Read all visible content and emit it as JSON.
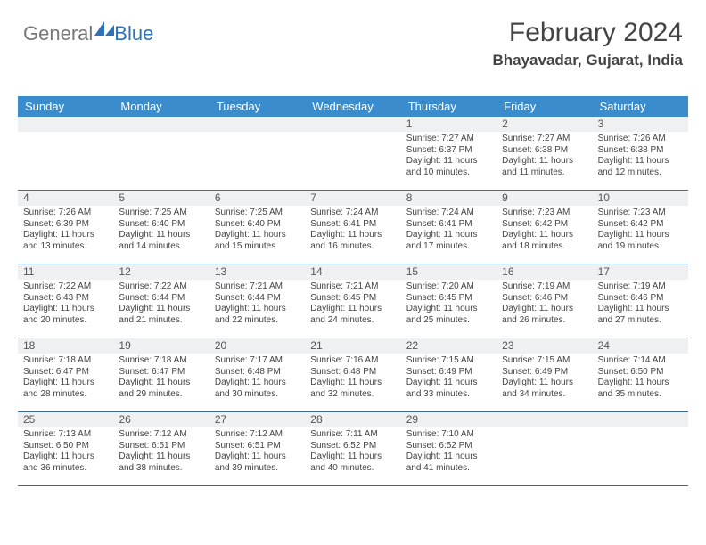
{
  "brand": {
    "part1": "General",
    "part2": "Blue"
  },
  "title": "February 2024",
  "location": "Bhayavadar, Gujarat, India",
  "colors": {
    "header_bg": "#3b8ccc",
    "header_text": "#ffffff",
    "week_border": "#3b6a9a",
    "daynum_bg": "#eef0f2",
    "text": "#444444",
    "brand_blue": "#2d72b8"
  },
  "days_of_week": [
    "Sunday",
    "Monday",
    "Tuesday",
    "Wednesday",
    "Thursday",
    "Friday",
    "Saturday"
  ],
  "cells": [
    {
      "day": "",
      "sunrise": "",
      "sunset": "",
      "daylight1": "",
      "daylight2": ""
    },
    {
      "day": "",
      "sunrise": "",
      "sunset": "",
      "daylight1": "",
      "daylight2": ""
    },
    {
      "day": "",
      "sunrise": "",
      "sunset": "",
      "daylight1": "",
      "daylight2": ""
    },
    {
      "day": "",
      "sunrise": "",
      "sunset": "",
      "daylight1": "",
      "daylight2": ""
    },
    {
      "day": "1",
      "sunrise": "Sunrise: 7:27 AM",
      "sunset": "Sunset: 6:37 PM",
      "daylight1": "Daylight: 11 hours",
      "daylight2": "and 10 minutes."
    },
    {
      "day": "2",
      "sunrise": "Sunrise: 7:27 AM",
      "sunset": "Sunset: 6:38 PM",
      "daylight1": "Daylight: 11 hours",
      "daylight2": "and 11 minutes."
    },
    {
      "day": "3",
      "sunrise": "Sunrise: 7:26 AM",
      "sunset": "Sunset: 6:38 PM",
      "daylight1": "Daylight: 11 hours",
      "daylight2": "and 12 minutes."
    },
    {
      "day": "4",
      "sunrise": "Sunrise: 7:26 AM",
      "sunset": "Sunset: 6:39 PM",
      "daylight1": "Daylight: 11 hours",
      "daylight2": "and 13 minutes."
    },
    {
      "day": "5",
      "sunrise": "Sunrise: 7:25 AM",
      "sunset": "Sunset: 6:40 PM",
      "daylight1": "Daylight: 11 hours",
      "daylight2": "and 14 minutes."
    },
    {
      "day": "6",
      "sunrise": "Sunrise: 7:25 AM",
      "sunset": "Sunset: 6:40 PM",
      "daylight1": "Daylight: 11 hours",
      "daylight2": "and 15 minutes."
    },
    {
      "day": "7",
      "sunrise": "Sunrise: 7:24 AM",
      "sunset": "Sunset: 6:41 PM",
      "daylight1": "Daylight: 11 hours",
      "daylight2": "and 16 minutes."
    },
    {
      "day": "8",
      "sunrise": "Sunrise: 7:24 AM",
      "sunset": "Sunset: 6:41 PM",
      "daylight1": "Daylight: 11 hours",
      "daylight2": "and 17 minutes."
    },
    {
      "day": "9",
      "sunrise": "Sunrise: 7:23 AM",
      "sunset": "Sunset: 6:42 PM",
      "daylight1": "Daylight: 11 hours",
      "daylight2": "and 18 minutes."
    },
    {
      "day": "10",
      "sunrise": "Sunrise: 7:23 AM",
      "sunset": "Sunset: 6:42 PM",
      "daylight1": "Daylight: 11 hours",
      "daylight2": "and 19 minutes."
    },
    {
      "day": "11",
      "sunrise": "Sunrise: 7:22 AM",
      "sunset": "Sunset: 6:43 PM",
      "daylight1": "Daylight: 11 hours",
      "daylight2": "and 20 minutes."
    },
    {
      "day": "12",
      "sunrise": "Sunrise: 7:22 AM",
      "sunset": "Sunset: 6:44 PM",
      "daylight1": "Daylight: 11 hours",
      "daylight2": "and 21 minutes."
    },
    {
      "day": "13",
      "sunrise": "Sunrise: 7:21 AM",
      "sunset": "Sunset: 6:44 PM",
      "daylight1": "Daylight: 11 hours",
      "daylight2": "and 22 minutes."
    },
    {
      "day": "14",
      "sunrise": "Sunrise: 7:21 AM",
      "sunset": "Sunset: 6:45 PM",
      "daylight1": "Daylight: 11 hours",
      "daylight2": "and 24 minutes."
    },
    {
      "day": "15",
      "sunrise": "Sunrise: 7:20 AM",
      "sunset": "Sunset: 6:45 PM",
      "daylight1": "Daylight: 11 hours",
      "daylight2": "and 25 minutes."
    },
    {
      "day": "16",
      "sunrise": "Sunrise: 7:19 AM",
      "sunset": "Sunset: 6:46 PM",
      "daylight1": "Daylight: 11 hours",
      "daylight2": "and 26 minutes."
    },
    {
      "day": "17",
      "sunrise": "Sunrise: 7:19 AM",
      "sunset": "Sunset: 6:46 PM",
      "daylight1": "Daylight: 11 hours",
      "daylight2": "and 27 minutes."
    },
    {
      "day": "18",
      "sunrise": "Sunrise: 7:18 AM",
      "sunset": "Sunset: 6:47 PM",
      "daylight1": "Daylight: 11 hours",
      "daylight2": "and 28 minutes."
    },
    {
      "day": "19",
      "sunrise": "Sunrise: 7:18 AM",
      "sunset": "Sunset: 6:47 PM",
      "daylight1": "Daylight: 11 hours",
      "daylight2": "and 29 minutes."
    },
    {
      "day": "20",
      "sunrise": "Sunrise: 7:17 AM",
      "sunset": "Sunset: 6:48 PM",
      "daylight1": "Daylight: 11 hours",
      "daylight2": "and 30 minutes."
    },
    {
      "day": "21",
      "sunrise": "Sunrise: 7:16 AM",
      "sunset": "Sunset: 6:48 PM",
      "daylight1": "Daylight: 11 hours",
      "daylight2": "and 32 minutes."
    },
    {
      "day": "22",
      "sunrise": "Sunrise: 7:15 AM",
      "sunset": "Sunset: 6:49 PM",
      "daylight1": "Daylight: 11 hours",
      "daylight2": "and 33 minutes."
    },
    {
      "day": "23",
      "sunrise": "Sunrise: 7:15 AM",
      "sunset": "Sunset: 6:49 PM",
      "daylight1": "Daylight: 11 hours",
      "daylight2": "and 34 minutes."
    },
    {
      "day": "24",
      "sunrise": "Sunrise: 7:14 AM",
      "sunset": "Sunset: 6:50 PM",
      "daylight1": "Daylight: 11 hours",
      "daylight2": "and 35 minutes."
    },
    {
      "day": "25",
      "sunrise": "Sunrise: 7:13 AM",
      "sunset": "Sunset: 6:50 PM",
      "daylight1": "Daylight: 11 hours",
      "daylight2": "and 36 minutes."
    },
    {
      "day": "26",
      "sunrise": "Sunrise: 7:12 AM",
      "sunset": "Sunset: 6:51 PM",
      "daylight1": "Daylight: 11 hours",
      "daylight2": "and 38 minutes."
    },
    {
      "day": "27",
      "sunrise": "Sunrise: 7:12 AM",
      "sunset": "Sunset: 6:51 PM",
      "daylight1": "Daylight: 11 hours",
      "daylight2": "and 39 minutes."
    },
    {
      "day": "28",
      "sunrise": "Sunrise: 7:11 AM",
      "sunset": "Sunset: 6:52 PM",
      "daylight1": "Daylight: 11 hours",
      "daylight2": "and 40 minutes."
    },
    {
      "day": "29",
      "sunrise": "Sunrise: 7:10 AM",
      "sunset": "Sunset: 6:52 PM",
      "daylight1": "Daylight: 11 hours",
      "daylight2": "and 41 minutes."
    },
    {
      "day": "",
      "sunrise": "",
      "sunset": "",
      "daylight1": "",
      "daylight2": ""
    },
    {
      "day": "",
      "sunrise": "",
      "sunset": "",
      "daylight1": "",
      "daylight2": ""
    }
  ]
}
